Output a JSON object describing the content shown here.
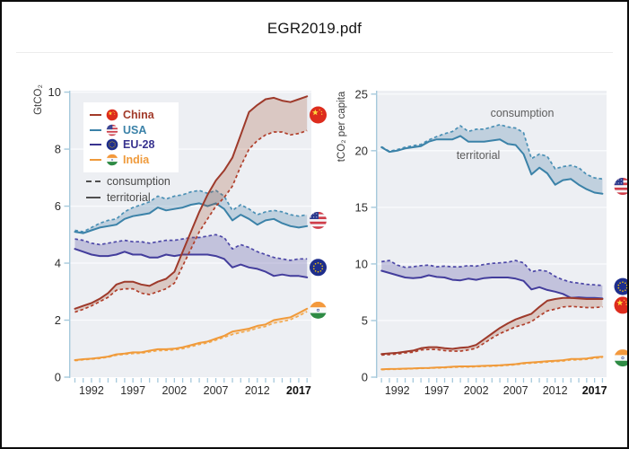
{
  "header": {
    "title": "EGR2019.pdf"
  },
  "legend": {
    "items": [
      {
        "label": "China",
        "color": "#a23a29",
        "flag": "china"
      },
      {
        "label": "USA",
        "color": "#3b82a8",
        "flag": "usa"
      },
      {
        "label": "EU-28",
        "color": "#38338f",
        "flag": "eu"
      },
      {
        "label": "India",
        "color": "#ef9a3b",
        "flag": "india"
      }
    ],
    "styles": [
      {
        "label": "consumption",
        "dash": true
      },
      {
        "label": "territorial",
        "dash": false
      }
    ]
  },
  "colors": {
    "plot_background": "#edeff3",
    "axis": "#a6c9dc",
    "gridline": "#fafbfd",
    "tick_label": "#2d2d2d"
  },
  "chart_data": [
    {
      "type": "area",
      "id": "left",
      "title": "",
      "ylabel": "GtCO₂",
      "ylim": [
        0,
        10.05
      ],
      "yticks": [
        0,
        2,
        4,
        6,
        8,
        10
      ],
      "xlim": [
        1989.3,
        2018.52
      ],
      "xticks": [
        1992,
        1997,
        2002,
        2007,
        2012,
        2017
      ],
      "bold_xtick": 2017,
      "grid": true,
      "years": [
        1990,
        1991,
        1992,
        1993,
        1994,
        1995,
        1996,
        1997,
        1998,
        1999,
        2000,
        2001,
        2002,
        2003,
        2004,
        2005,
        2006,
        2007,
        2008,
        2009,
        2010,
        2011,
        2012,
        2013,
        2014,
        2015,
        2016,
        2017,
        2018
      ],
      "series": [
        {
          "name": "EU-28",
          "color": "#433d9c",
          "dash_color": "#4e49a8",
          "fill": "rgba(96,90,168,0.30)",
          "territorial": [
            4.5,
            4.4,
            4.3,
            4.25,
            4.25,
            4.3,
            4.4,
            4.3,
            4.3,
            4.2,
            4.2,
            4.3,
            4.25,
            4.3,
            4.3,
            4.3,
            4.3,
            4.25,
            4.15,
            3.85,
            3.95,
            3.85,
            3.8,
            3.7,
            3.55,
            3.6,
            3.55,
            3.55,
            3.5
          ],
          "consumption": [
            4.85,
            4.8,
            4.7,
            4.65,
            4.7,
            4.75,
            4.8,
            4.75,
            4.75,
            4.7,
            4.75,
            4.8,
            4.8,
            4.85,
            4.9,
            4.9,
            4.95,
            5.0,
            4.9,
            4.5,
            4.65,
            4.55,
            4.4,
            4.3,
            4.2,
            4.15,
            4.1,
            4.15,
            4.15
          ]
        },
        {
          "name": "USA",
          "color": "#3b82a8",
          "dash_color": "#4a90b5",
          "fill": "rgba(91,135,176,0.30)",
          "territorial": [
            5.1,
            5.05,
            5.15,
            5.25,
            5.3,
            5.35,
            5.55,
            5.65,
            5.7,
            5.75,
            5.95,
            5.85,
            5.9,
            5.95,
            6.05,
            6.1,
            6.0,
            6.1,
            5.9,
            5.5,
            5.7,
            5.55,
            5.35,
            5.5,
            5.55,
            5.4,
            5.3,
            5.25,
            5.3
          ],
          "consumption": [
            5.15,
            5.1,
            5.25,
            5.4,
            5.5,
            5.55,
            5.8,
            5.95,
            6.05,
            6.15,
            6.35,
            6.25,
            6.35,
            6.4,
            6.5,
            6.55,
            6.45,
            6.55,
            6.35,
            5.85,
            6.05,
            5.9,
            5.7,
            5.8,
            5.85,
            5.8,
            5.7,
            5.65,
            5.7
          ]
        },
        {
          "name": "China",
          "color": "#9e3a2b",
          "dash_color": "#b13f2b",
          "fill": "rgba(164,82,52,0.25)",
          "territorial": [
            2.4,
            2.5,
            2.6,
            2.75,
            2.95,
            3.25,
            3.35,
            3.35,
            3.25,
            3.2,
            3.35,
            3.45,
            3.7,
            4.4,
            5.1,
            5.8,
            6.4,
            6.9,
            7.25,
            7.7,
            8.5,
            9.3,
            9.55,
            9.75,
            9.8,
            9.7,
            9.65,
            9.75,
            9.85
          ],
          "consumption": [
            2.28,
            2.38,
            2.5,
            2.65,
            2.8,
            3.05,
            3.1,
            3.1,
            2.95,
            2.9,
            3.0,
            3.1,
            3.3,
            3.9,
            4.5,
            5.1,
            5.55,
            6.0,
            6.3,
            6.7,
            7.4,
            8.0,
            8.3,
            8.5,
            8.6,
            8.6,
            8.5,
            8.55,
            8.65
          ]
        },
        {
          "name": "India",
          "color": "#f09a3a",
          "dash_color": "#f3a94f",
          "fill": "rgba(240,156,60,0.20)",
          "territorial": [
            0.6,
            0.63,
            0.65,
            0.68,
            0.72,
            0.8,
            0.83,
            0.87,
            0.87,
            0.93,
            0.98,
            0.98,
            1.0,
            1.05,
            1.12,
            1.2,
            1.25,
            1.35,
            1.45,
            1.6,
            1.65,
            1.7,
            1.8,
            1.85,
            2.0,
            2.05,
            2.1,
            2.25,
            2.4
          ],
          "consumption": [
            0.58,
            0.61,
            0.63,
            0.66,
            0.7,
            0.77,
            0.8,
            0.83,
            0.84,
            0.89,
            0.93,
            0.94,
            0.96,
            1.0,
            1.07,
            1.15,
            1.2,
            1.3,
            1.4,
            1.5,
            1.57,
            1.63,
            1.72,
            1.78,
            1.9,
            1.95,
            2.02,
            2.15,
            2.3
          ]
        }
      ],
      "flags": [
        {
          "country": "china",
          "value": 9.2
        },
        {
          "country": "usa",
          "value": 5.5
        },
        {
          "country": "eu",
          "value": 3.85
        },
        {
          "country": "india",
          "value": 2.35
        }
      ],
      "annotations": []
    },
    {
      "type": "area",
      "id": "right",
      "title": "",
      "ylabel": "tCO₂ per capita",
      "ylim": [
        0,
        25.3
      ],
      "yticks": [
        0,
        5,
        10,
        15,
        20,
        25
      ],
      "xlim": [
        1989.3,
        2018.52
      ],
      "xticks": [
        1992,
        1997,
        2002,
        2007,
        2012,
        2017
      ],
      "bold_xtick": 2017,
      "grid": true,
      "years": [
        1990,
        1991,
        1992,
        1993,
        1994,
        1995,
        1996,
        1997,
        1998,
        1999,
        2000,
        2001,
        2002,
        2003,
        2004,
        2005,
        2006,
        2007,
        2008,
        2009,
        2010,
        2011,
        2012,
        2013,
        2014,
        2015,
        2016,
        2017,
        2018
      ],
      "series": [
        {
          "name": "EU-28",
          "color": "#433d9c",
          "dash_color": "#4e49a8",
          "fill": "rgba(96,90,168,0.30)",
          "territorial": [
            9.4,
            9.2,
            9.0,
            8.8,
            8.75,
            8.8,
            9.0,
            8.85,
            8.8,
            8.6,
            8.55,
            8.7,
            8.6,
            8.75,
            8.8,
            8.8,
            8.8,
            8.7,
            8.5,
            7.75,
            7.95,
            7.7,
            7.55,
            7.35,
            7.0,
            7.05,
            7.0,
            7.0,
            6.95
          ],
          "consumption": [
            10.2,
            10.3,
            9.9,
            9.7,
            9.75,
            9.85,
            9.9,
            9.75,
            9.8,
            9.75,
            9.75,
            9.85,
            9.8,
            9.95,
            10.05,
            10.1,
            10.15,
            10.3,
            10.1,
            9.3,
            9.45,
            9.35,
            8.9,
            8.6,
            8.4,
            8.3,
            8.2,
            8.15,
            8.1
          ]
        },
        {
          "name": "USA",
          "color": "#3b82a8",
          "dash_color": "#4a90b5",
          "fill": "rgba(91,135,176,0.30)",
          "territorial": [
            20.3,
            19.9,
            20.0,
            20.2,
            20.3,
            20.4,
            20.8,
            21.0,
            21.0,
            21.0,
            21.3,
            20.8,
            20.8,
            20.8,
            20.9,
            21.0,
            20.6,
            20.5,
            19.7,
            17.9,
            18.5,
            18.0,
            17.0,
            17.4,
            17.5,
            17.0,
            16.6,
            16.3,
            16.2
          ],
          "consumption": [
            20.35,
            19.95,
            20.1,
            20.3,
            20.45,
            20.55,
            20.95,
            21.25,
            21.5,
            21.7,
            22.2,
            21.7,
            21.9,
            21.9,
            22.1,
            22.3,
            22.1,
            22.0,
            21.6,
            19.3,
            19.7,
            19.5,
            18.4,
            18.6,
            18.7,
            18.5,
            17.9,
            17.6,
            17.5
          ]
        },
        {
          "name": "China",
          "color": "#9e3a2b",
          "dash_color": "#b13f2b",
          "fill": "rgba(164,82,52,0.25)",
          "territorial": [
            2.05,
            2.1,
            2.15,
            2.25,
            2.35,
            2.55,
            2.65,
            2.65,
            2.55,
            2.5,
            2.6,
            2.65,
            2.85,
            3.35,
            3.85,
            4.35,
            4.75,
            5.1,
            5.35,
            5.6,
            6.2,
            6.75,
            6.9,
            7.0,
            7.0,
            6.95,
            6.9,
            6.9,
            6.9
          ],
          "consumption": [
            1.95,
            2.0,
            2.05,
            2.15,
            2.2,
            2.4,
            2.45,
            2.45,
            2.35,
            2.3,
            2.3,
            2.4,
            2.55,
            3.0,
            3.45,
            3.85,
            4.15,
            4.45,
            4.65,
            4.9,
            5.4,
            5.85,
            6.0,
            6.2,
            6.25,
            6.2,
            6.15,
            6.15,
            6.2
          ]
        },
        {
          "name": "India",
          "color": "#f09a3a",
          "dash_color": "#f3a94f",
          "fill": "rgba(240,156,60,0.20)",
          "territorial": [
            0.7,
            0.72,
            0.73,
            0.75,
            0.77,
            0.8,
            0.82,
            0.85,
            0.87,
            0.92,
            0.95,
            0.95,
            0.97,
            1.0,
            1.02,
            1.05,
            1.1,
            1.15,
            1.25,
            1.3,
            1.35,
            1.4,
            1.45,
            1.5,
            1.6,
            1.6,
            1.65,
            1.75,
            1.8
          ],
          "consumption": [
            0.67,
            0.69,
            0.7,
            0.72,
            0.74,
            0.77,
            0.79,
            0.81,
            0.83,
            0.87,
            0.9,
            0.9,
            0.92,
            0.95,
            0.97,
            1.0,
            1.05,
            1.1,
            1.19,
            1.24,
            1.28,
            1.33,
            1.38,
            1.43,
            1.52,
            1.53,
            1.58,
            1.67,
            1.72
          ]
        }
      ],
      "flags": [
        {
          "country": "usa",
          "value": 16.85
        },
        {
          "country": "eu",
          "value": 8.0
        },
        {
          "country": "china",
          "value": 6.35
        },
        {
          "country": "india",
          "value": 1.7
        }
      ],
      "annotations": [
        {
          "text": "consumption"
        },
        {
          "text": "territorial"
        }
      ]
    }
  ]
}
